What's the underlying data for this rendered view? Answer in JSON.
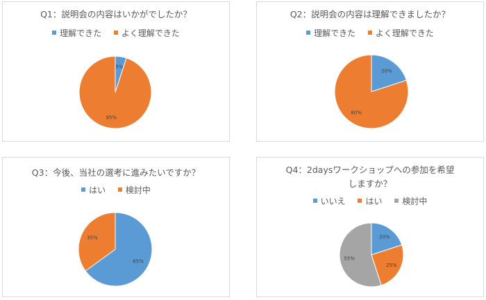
{
  "colors": {
    "blue": "#5b9bd5",
    "orange": "#ed7d31",
    "gray": "#a5a5a5"
  },
  "chart_data": [
    {
      "type": "pie",
      "title": "Q1：説明会の内容はいかがでしたか？",
      "legend_position": "top",
      "series": [
        {
          "name": "理解できた",
          "value": 5,
          "label": "5%",
          "color": "#5b9bd5"
        },
        {
          "name": "よく理解できた",
          "value": 95,
          "label": "95%",
          "color": "#ed7d31"
        }
      ]
    },
    {
      "type": "pie",
      "title": "Q2：説明会の内容は理解できましたか？",
      "legend_position": "top",
      "series": [
        {
          "name": "理解できた",
          "value": 20,
          "label": "20%",
          "color": "#5b9bd5"
        },
        {
          "name": "よく理解できた",
          "value": 80,
          "label": "80%",
          "color": "#ed7d31"
        }
      ]
    },
    {
      "type": "pie",
      "title": "Q3：今後、当社の選考に進みたいですか？",
      "legend_position": "top",
      "series": [
        {
          "name": "はい",
          "value": 65,
          "label": "65%",
          "color": "#5b9bd5"
        },
        {
          "name": "検討中",
          "value": 35,
          "label": "35%",
          "color": "#ed7d31"
        }
      ]
    },
    {
      "type": "pie",
      "title": "Q4：2daysワークショップへの参加を希望しますか？",
      "legend_position": "top",
      "series": [
        {
          "name": "いいえ",
          "value": 20,
          "label": "20%",
          "color": "#5b9bd5"
        },
        {
          "name": "はい",
          "value": 25,
          "label": "25%",
          "color": "#ed7d31"
        },
        {
          "name": "検討中",
          "value": 55,
          "label": "55%",
          "color": "#a5a5a5"
        }
      ]
    }
  ]
}
